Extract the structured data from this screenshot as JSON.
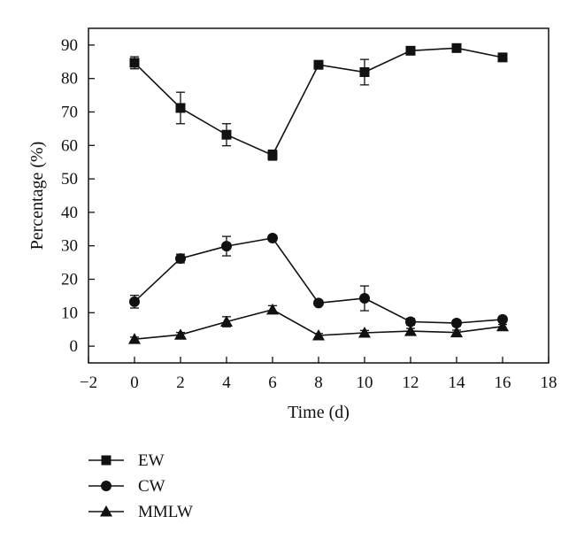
{
  "chart_data": {
    "type": "line",
    "title": "",
    "xlabel": "Time (d)",
    "ylabel": "Percentage (%)",
    "xlim": [
      -2,
      18
    ],
    "ylim": [
      -5,
      95
    ],
    "xticks": [
      -2,
      0,
      2,
      4,
      6,
      8,
      10,
      12,
      14,
      16,
      18
    ],
    "yticks": [
      0,
      10,
      20,
      30,
      40,
      50,
      60,
      70,
      80,
      90
    ],
    "grid": false,
    "legend_position": "below",
    "x": [
      0,
      2,
      4,
      6,
      8,
      10,
      12,
      14,
      16
    ],
    "series": [
      {
        "name": "EW",
        "marker": "square",
        "values": [
          84.7,
          71.2,
          63.2,
          57.1,
          84.1,
          81.9,
          88.3,
          89.1,
          86.3
        ],
        "errors": [
          1.8,
          4.7,
          3.3,
          1.5,
          0.7,
          3.8,
          0.9,
          0.8,
          0.6
        ]
      },
      {
        "name": "CW",
        "marker": "circle",
        "values": [
          13.3,
          26.2,
          29.9,
          32.3,
          12.9,
          14.3,
          7.3,
          6.9,
          8.0
        ],
        "errors": [
          1.9,
          1.3,
          2.9,
          0.8,
          0.6,
          3.7,
          1.0,
          0.9,
          0.6
        ]
      },
      {
        "name": "MMLW",
        "marker": "triangle",
        "values": [
          2.1,
          3.4,
          7.3,
          10.9,
          3.2,
          4.0,
          4.5,
          4.1,
          5.9
        ],
        "errors": [
          0.6,
          0.7,
          1.5,
          1.2,
          0.6,
          0.7,
          0.8,
          0.7,
          0.6
        ]
      }
    ]
  }
}
